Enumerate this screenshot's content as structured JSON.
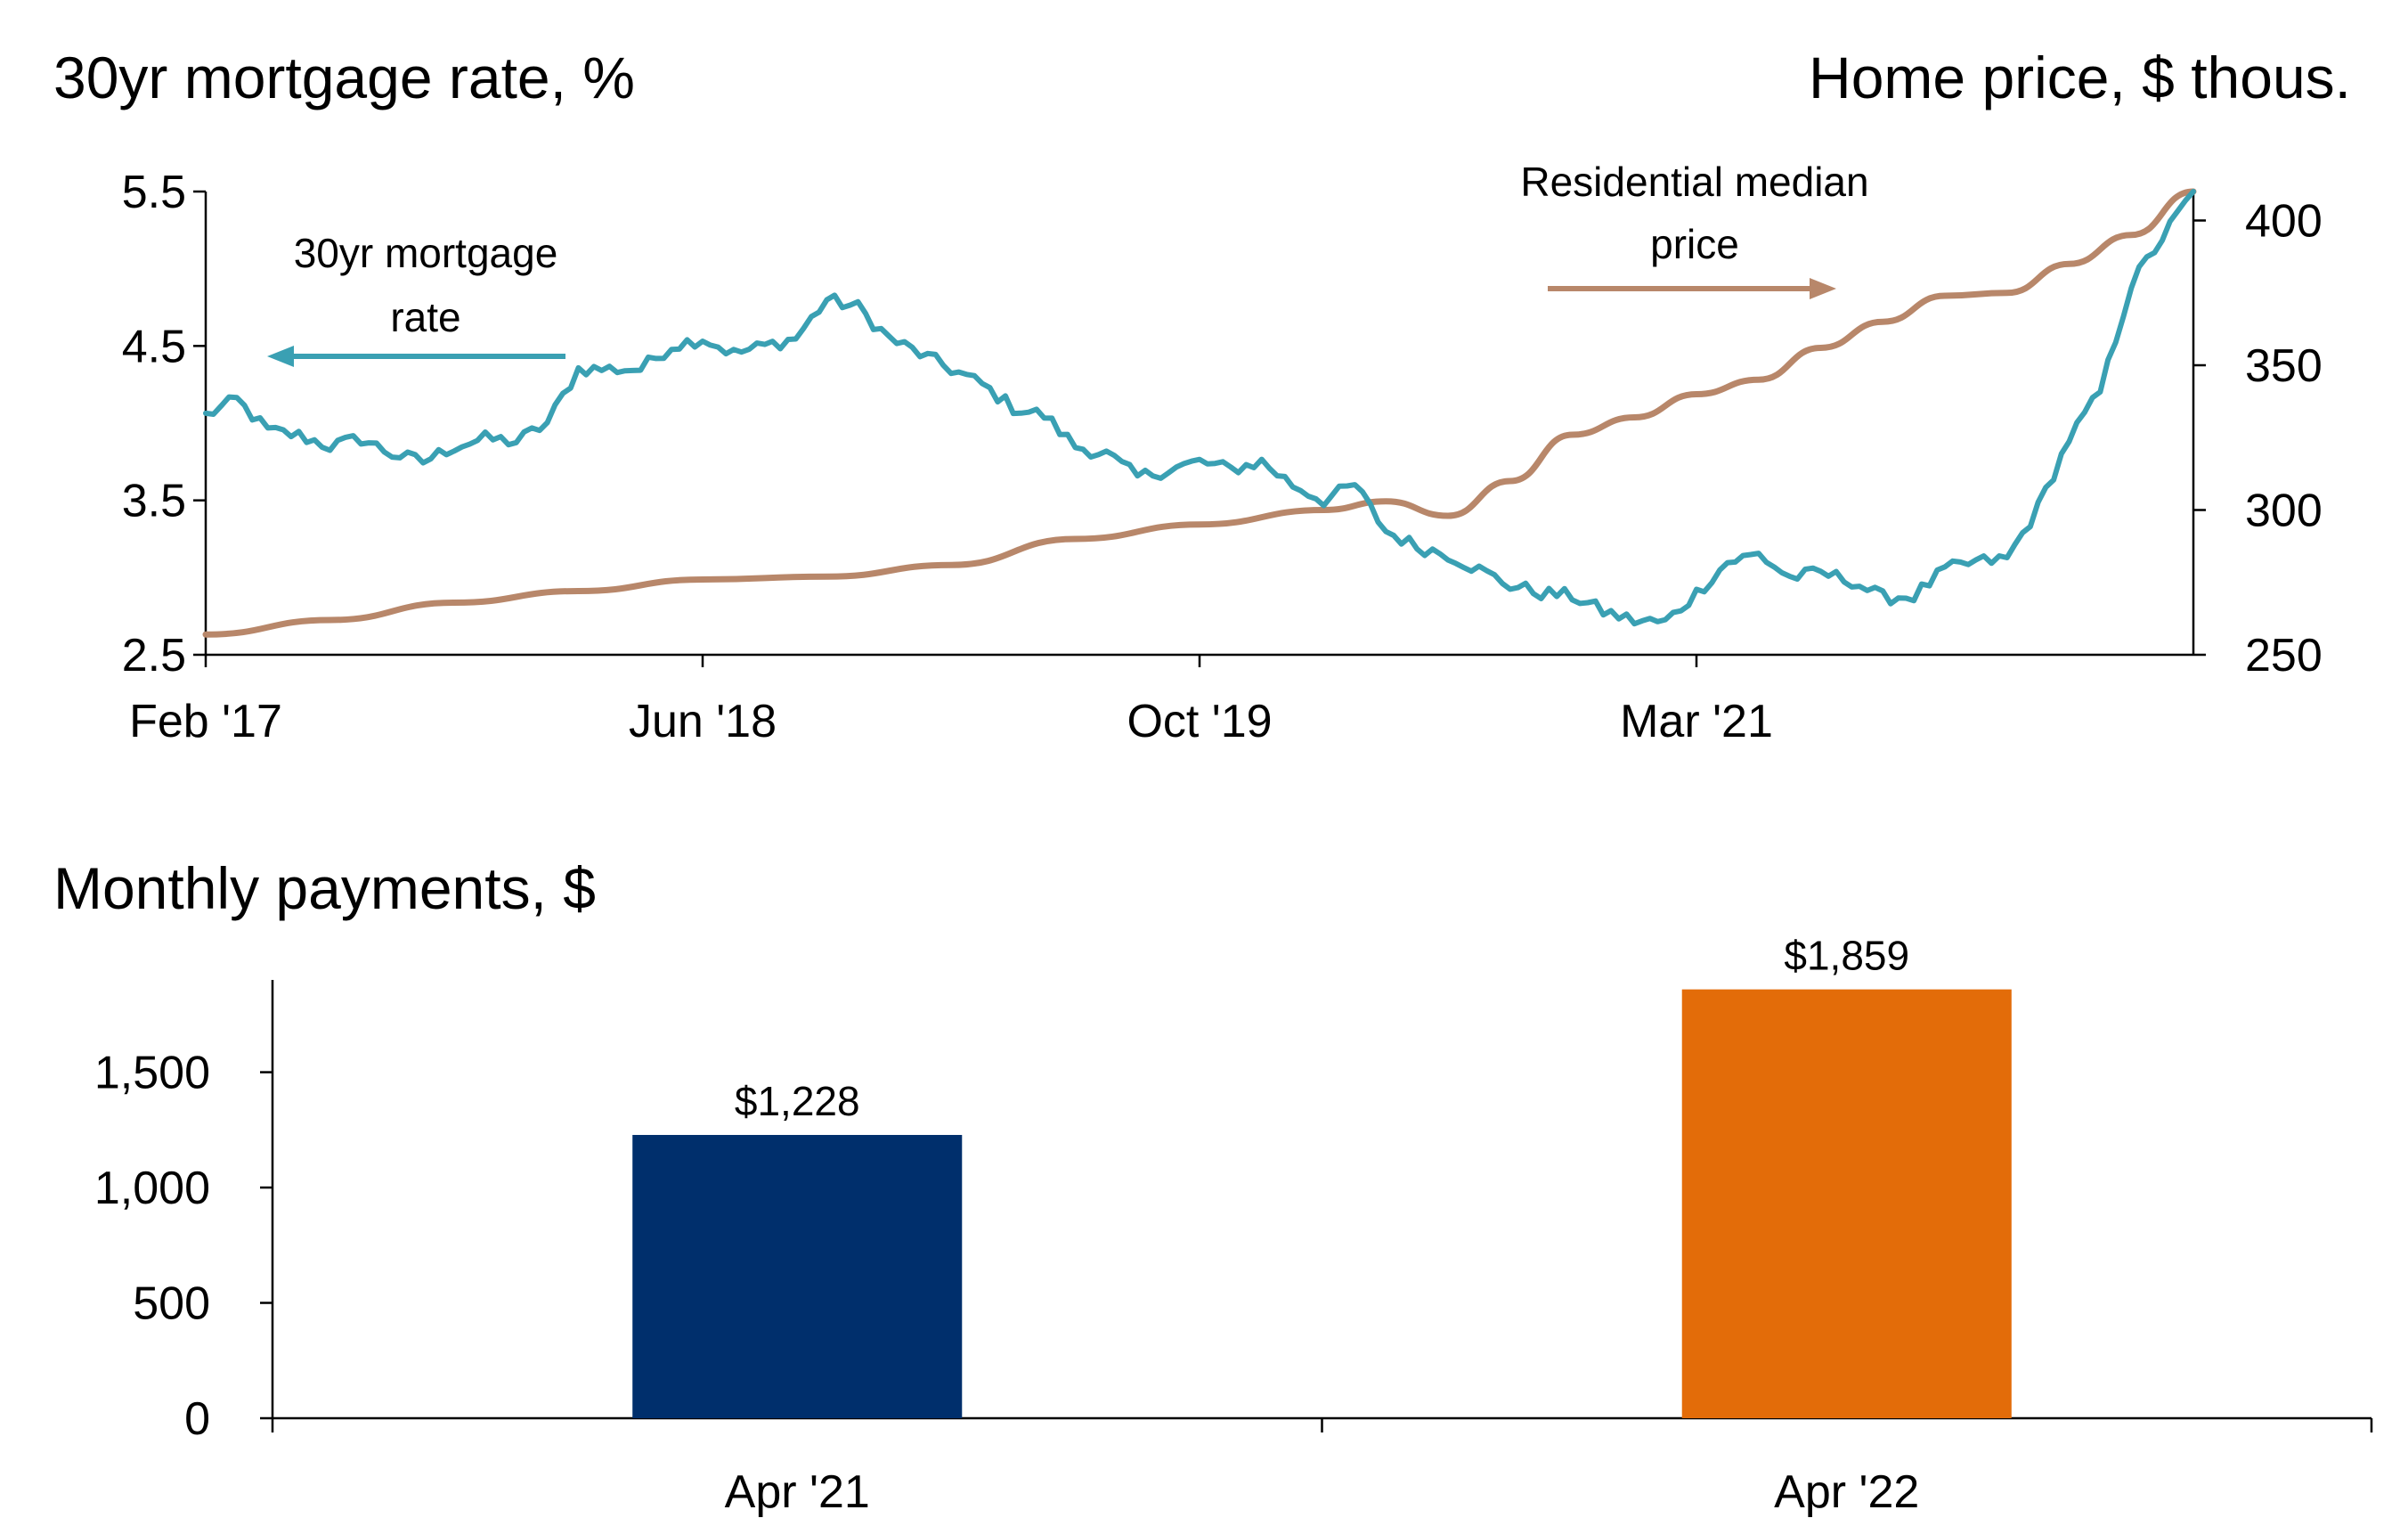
{
  "chart_data": [
    {
      "type": "line",
      "title_left": "30yr mortgage rate, %",
      "title_right": "Home price, $ thous.",
      "x_tick_labels": [
        "Feb '17",
        "Jun '18",
        "Oct '19",
        "Mar '21"
      ],
      "x_range": [
        "2017-02",
        "2022-06"
      ],
      "y_left": {
        "range": [
          2.5,
          5.5
        ],
        "tick_values": [
          2.5,
          3.5,
          4.5,
          5.5
        ],
        "tick_labels": [
          "2.5",
          "3.5",
          "4.5",
          "5.5"
        ]
      },
      "y_right": {
        "range": [
          250,
          410
        ],
        "tick_values": [
          250,
          300,
          350,
          400
        ],
        "tick_labels": [
          "250",
          "300",
          "350",
          "400"
        ]
      },
      "grid": false,
      "colors": {
        "rate": "#3aa0b3",
        "price": "#b8876a"
      },
      "annotations": {
        "rate_label_line1": "30yr mortgage",
        "rate_label_line2": "rate",
        "price_label_line1": "Residential median",
        "price_label_line2": "price"
      },
      "series": [
        {
          "name": "30yr mortgage rate",
          "axis": "left",
          "x": [
            "2017-02",
            "2017-03",
            "2017-04",
            "2017-05",
            "2017-06",
            "2017-07",
            "2017-08",
            "2017-09",
            "2017-10",
            "2017-11",
            "2017-12",
            "2018-01",
            "2018-02",
            "2018-03",
            "2018-04",
            "2018-05",
            "2018-06",
            "2018-07",
            "2018-08",
            "2018-09",
            "2018-10",
            "2018-11",
            "2018-12",
            "2019-01",
            "2019-02",
            "2019-03",
            "2019-04",
            "2019-05",
            "2019-06",
            "2019-07",
            "2019-08",
            "2019-09",
            "2019-10",
            "2019-11",
            "2019-12",
            "2020-01",
            "2020-02",
            "2020-03",
            "2020-04",
            "2020-05",
            "2020-06",
            "2020-07",
            "2020-08",
            "2020-09",
            "2020-10",
            "2020-11",
            "2020-12",
            "2021-01",
            "2021-02",
            "2021-03",
            "2021-04",
            "2021-05",
            "2021-06",
            "2021-07",
            "2021-08",
            "2021-09",
            "2021-10",
            "2021-11",
            "2021-12",
            "2022-01",
            "2022-02",
            "2022-03",
            "2022-04",
            "2022-05",
            "2022-06"
          ],
          "values": [
            4.05,
            4.15,
            3.95,
            3.92,
            3.85,
            3.9,
            3.8,
            3.75,
            3.85,
            3.9,
            3.88,
            4.0,
            4.35,
            4.35,
            4.35,
            4.5,
            4.55,
            4.45,
            4.5,
            4.55,
            4.8,
            4.75,
            4.55,
            4.45,
            4.35,
            4.25,
            4.1,
            4.05,
            3.85,
            3.8,
            3.65,
            3.7,
            3.75,
            3.7,
            3.75,
            3.6,
            3.5,
            3.6,
            3.3,
            3.2,
            3.15,
            3.05,
            2.95,
            2.9,
            2.88,
            2.78,
            2.72,
            2.71,
            2.9,
            3.1,
            3.15,
            3.0,
            3.03,
            2.98,
            2.87,
            2.88,
            3.05,
            3.1,
            3.12,
            3.45,
            3.9,
            4.2,
            4.9,
            5.2,
            5.5
          ]
        },
        {
          "name": "Residential median price",
          "axis": "right",
          "x": [
            "2017-02",
            "2017-06",
            "2017-10",
            "2018-02",
            "2018-06",
            "2018-10",
            "2019-02",
            "2019-06",
            "2019-10",
            "2020-02",
            "2020-04",
            "2020-06",
            "2020-08",
            "2020-10",
            "2020-12",
            "2021-02",
            "2021-04",
            "2021-06",
            "2021-08",
            "2021-10",
            "2021-12",
            "2022-02",
            "2022-04",
            "2022-06"
          ],
          "values": [
            257,
            262,
            268,
            272,
            276,
            277,
            281,
            290,
            295,
            300,
            303,
            298,
            310,
            326,
            332,
            340,
            345,
            356,
            365,
            374,
            375,
            385,
            395,
            410
          ]
        }
      ]
    },
    {
      "type": "bar",
      "title": "Monthly payments, $",
      "categories": [
        "Apr '21",
        "Apr '22"
      ],
      "values": [
        1228,
        1859
      ],
      "value_labels": [
        "$1,228",
        "$1,859"
      ],
      "colors": [
        "#002f6c",
        "#e36c09"
      ],
      "ylim": [
        0,
        1900
      ],
      "y_tick_values": [
        0,
        500,
        1000,
        1500
      ],
      "y_tick_labels": [
        "0",
        "500",
        "1,000",
        "1,500"
      ],
      "grid": false
    }
  ]
}
